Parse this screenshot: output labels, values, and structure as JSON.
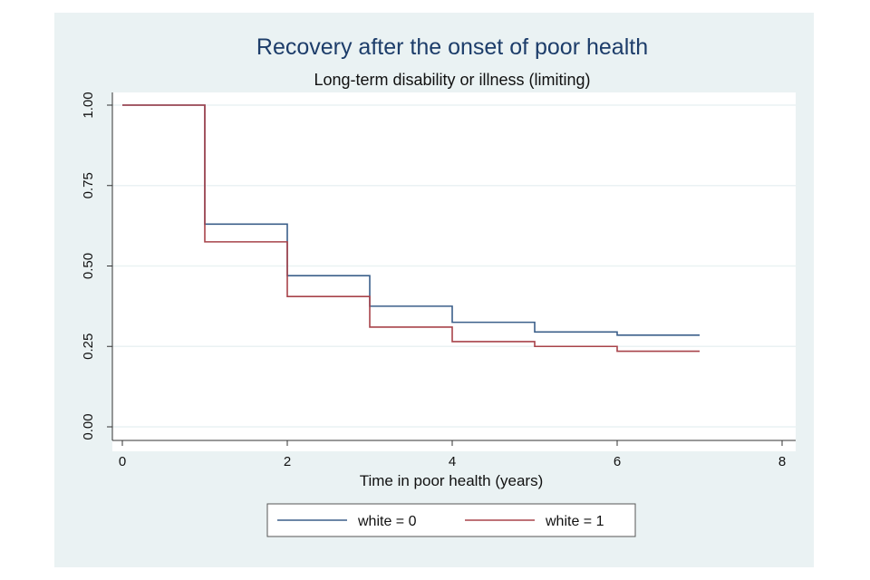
{
  "chart_data": {
    "type": "line",
    "step": true,
    "title": "Recovery after the onset of poor health",
    "subtitle": "Long-term disability or illness (limiting)",
    "xlabel": "Time in poor health (years)",
    "ylabel": "",
    "xlim": [
      0,
      8
    ],
    "ylim": [
      0,
      1
    ],
    "x_ticks": [
      0,
      2,
      4,
      6,
      8
    ],
    "x_tick_labels": [
      "0",
      "2",
      "4",
      "6",
      "8"
    ],
    "y_ticks": [
      0,
      0.25,
      0.5,
      0.75,
      1.0
    ],
    "y_tick_labels": [
      "0.00",
      "0.25",
      "0.50",
      "0.75",
      "1.00"
    ],
    "grid": "horizontal",
    "legend_position": "bottom",
    "series": [
      {
        "name": "white = 0",
        "color": "#3b5f8a",
        "x": [
          0,
          1,
          2,
          3,
          4,
          5,
          6,
          7
        ],
        "y": [
          1.0,
          0.63,
          0.47,
          0.375,
          0.325,
          0.295,
          0.285,
          0.285
        ]
      },
      {
        "name": "white = 1",
        "color": "#a8434a",
        "x": [
          0,
          1,
          2,
          3,
          4,
          5,
          6,
          7
        ],
        "y": [
          1.0,
          0.575,
          0.405,
          0.31,
          0.265,
          0.25,
          0.235,
          0.235
        ]
      }
    ]
  }
}
